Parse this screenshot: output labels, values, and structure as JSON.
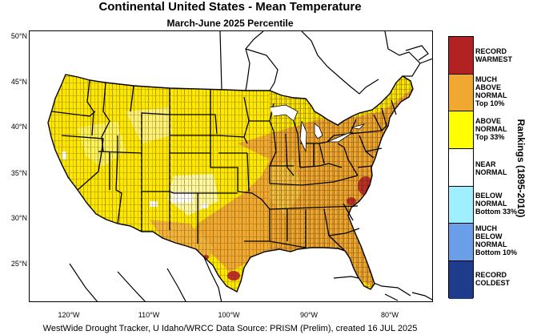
{
  "title": "Continental United States - Mean Temperature",
  "subtitle": "March-June 2025 Percentile",
  "footer": "WestWide Drought Tracker, U Idaho/WRCC Data Source: PRISM (Prelim), created 16 JUL 2025",
  "axes": {
    "y_ticks": [
      "50°N",
      "45°N",
      "40°N",
      "35°N",
      "30°N",
      "25°N"
    ],
    "x_ticks": [
      "120°W",
      "110°W",
      "100°W",
      "90°W",
      "80°W"
    ]
  },
  "legend": {
    "title": "Rankings (1895-2010)",
    "items": [
      {
        "label": "RECORD\nWARMEST",
        "color": "#b22222"
      },
      {
        "label": "MUCH\nABOVE\nNORMAL\nTop 10%",
        "color": "#f0a830"
      },
      {
        "label": "ABOVE\nNORMAL\nTop 33%",
        "color": "#ffff00"
      },
      {
        "label": "NEAR\nNORMAL",
        "color": "#ffffff"
      },
      {
        "label": "BELOW\nNORMAL\nBottom 33%",
        "color": "#9ff0ff"
      },
      {
        "label": "MUCH\nBELOW\nNORMAL\nBottom 10%",
        "color": "#6a9ee8"
      },
      {
        "label": "RECORD\nCOLDEST",
        "color": "#1f3c8c"
      }
    ]
  }
}
